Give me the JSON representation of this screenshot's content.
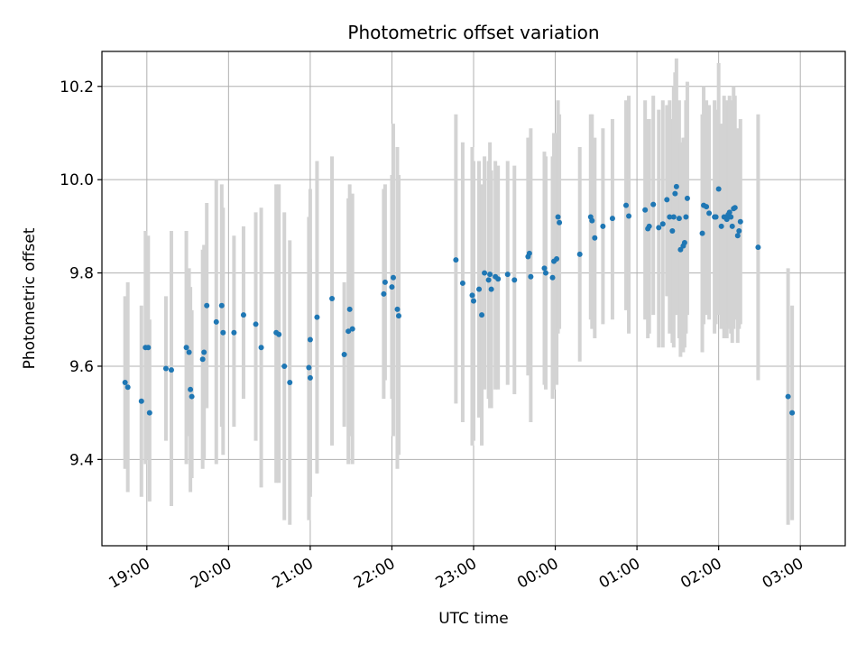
{
  "chart_data": {
    "type": "scatter",
    "title": "Photometric offset variation",
    "xlabel": "UTC time",
    "ylabel": "Photometric offset",
    "x_tick_labels": [
      "19:00",
      "20:00",
      "21:00",
      "22:00",
      "23:00",
      "00:00",
      "01:00",
      "02:00",
      "03:00"
    ],
    "y_tick_labels": [
      "9.4",
      "9.6",
      "9.8",
      "10.0",
      "10.2"
    ],
    "y_ticks": [
      9.4,
      9.6,
      9.8,
      10.0,
      10.2
    ],
    "grid": true,
    "legend": "none",
    "marker_color": "#1f77b4",
    "errorbar_color": "#d3d3d3",
    "points": [
      [
        "18:44",
        9.565,
        9.38,
        9.75
      ],
      [
        "18:46",
        9.555,
        9.33,
        9.78
      ],
      [
        "18:56",
        9.525,
        9.32,
        9.73
      ],
      [
        "18:59",
        9.64,
        9.39,
        9.89
      ],
      [
        "19:01",
        9.64,
        9.4,
        9.88
      ],
      [
        "19:02",
        9.5,
        9.31,
        9.7
      ],
      [
        "19:14",
        9.595,
        9.44,
        9.75
      ],
      [
        "19:18",
        9.592,
        9.3,
        9.89
      ],
      [
        "19:29",
        9.64,
        9.39,
        9.89
      ],
      [
        "19:31",
        9.63,
        9.45,
        9.81
      ],
      [
        "19:32",
        9.55,
        9.33,
        9.77
      ],
      [
        "19:33",
        9.535,
        9.36,
        9.72
      ],
      [
        "19:41",
        9.615,
        9.38,
        9.85
      ],
      [
        "19:42",
        9.63,
        9.4,
        9.86
      ],
      [
        "19:44",
        9.73,
        9.51,
        9.95
      ],
      [
        "19:51",
        9.695,
        9.39,
        10.0
      ],
      [
        "19:55",
        9.73,
        9.47,
        9.99
      ],
      [
        "19:56",
        9.672,
        9.41,
        9.94
      ],
      [
        "20:04",
        9.672,
        9.47,
        9.88
      ],
      [
        "20:11",
        9.71,
        9.53,
        9.9
      ],
      [
        "20:20",
        9.69,
        9.44,
        9.93
      ],
      [
        "20:24",
        9.64,
        9.34,
        9.94
      ],
      [
        "20:35",
        9.672,
        9.35,
        9.99
      ],
      [
        "20:37",
        9.668,
        9.35,
        9.99
      ],
      [
        "20:41",
        9.6,
        9.27,
        9.93
      ],
      [
        "20:45",
        9.565,
        9.26,
        9.87
      ],
      [
        "20:59",
        9.597,
        9.27,
        9.92
      ],
      [
        "21:00",
        9.575,
        9.32,
        9.83
      ],
      [
        "21:00",
        9.657,
        9.33,
        9.98
      ],
      [
        "21:05",
        9.705,
        9.37,
        10.04
      ],
      [
        "21:16",
        9.745,
        9.43,
        10.05
      ],
      [
        "21:25",
        9.625,
        9.47,
        9.78
      ],
      [
        "21:28",
        9.675,
        9.39,
        9.96
      ],
      [
        "21:29",
        9.722,
        9.45,
        9.99
      ],
      [
        "21:31",
        9.68,
        9.39,
        9.97
      ],
      [
        "21:54",
        9.755,
        9.53,
        9.98
      ],
      [
        "21:55",
        9.78,
        9.57,
        9.99
      ],
      [
        "22:00",
        9.77,
        9.53,
        10.01
      ],
      [
        "22:01",
        9.79,
        9.45,
        10.12
      ],
      [
        "22:04",
        9.722,
        9.38,
        10.07
      ],
      [
        "22:05",
        9.708,
        9.41,
        10.01
      ],
      [
        "22:47",
        9.828,
        9.52,
        10.14
      ],
      [
        "22:52",
        9.778,
        9.48,
        10.08
      ],
      [
        "22:59",
        9.752,
        9.43,
        10.07
      ],
      [
        "23:00",
        9.74,
        9.44,
        10.04
      ],
      [
        "23:04",
        9.765,
        9.49,
        10.04
      ],
      [
        "23:06",
        9.71,
        9.43,
        9.99
      ],
      [
        "23:08",
        9.8,
        9.55,
        10.05
      ],
      [
        "23:11",
        9.785,
        9.53,
        10.04
      ],
      [
        "23:12",
        9.797,
        9.51,
        10.08
      ],
      [
        "23:13",
        9.765,
        9.51,
        10.02
      ],
      [
        "23:16",
        9.792,
        9.55,
        10.04
      ],
      [
        "23:18",
        9.787,
        9.55,
        10.03
      ],
      [
        "23:25",
        9.797,
        9.56,
        10.04
      ],
      [
        "23:30",
        9.785,
        9.54,
        10.03
      ],
      [
        "23:40",
        9.835,
        9.58,
        10.09
      ],
      [
        "23:41",
        9.842,
        9.59,
        10.09
      ],
      [
        "23:42",
        9.792,
        9.48,
        10.11
      ],
      [
        "23:52",
        9.81,
        9.56,
        10.06
      ],
      [
        "23:53",
        9.8,
        9.55,
        10.05
      ],
      [
        "23:58",
        9.79,
        9.53,
        10.05
      ],
      [
        "23:59",
        9.825,
        9.55,
        10.1
      ],
      [
        "00:01",
        9.83,
        9.56,
        10.1
      ],
      [
        "00:02",
        9.92,
        9.67,
        10.17
      ],
      [
        "00:03",
        9.908,
        9.68,
        10.14
      ],
      [
        "00:18",
        9.84,
        9.61,
        10.07
      ],
      [
        "00:26",
        9.92,
        9.7,
        10.14
      ],
      [
        "00:27",
        9.912,
        9.68,
        10.14
      ],
      [
        "00:29",
        9.875,
        9.66,
        10.09
      ],
      [
        "00:35",
        9.9,
        9.69,
        10.11
      ],
      [
        "00:42",
        9.917,
        9.7,
        10.13
      ],
      [
        "00:52",
        9.945,
        9.72,
        10.17
      ],
      [
        "00:54",
        9.922,
        9.67,
        10.18
      ],
      [
        "01:06",
        9.935,
        9.7,
        10.17
      ],
      [
        "01:08",
        9.895,
        9.66,
        10.13
      ],
      [
        "01:09",
        9.9,
        9.67,
        10.13
      ],
      [
        "01:12",
        9.947,
        9.71,
        10.18
      ],
      [
        "01:16",
        9.897,
        9.64,
        10.15
      ],
      [
        "01:19",
        9.905,
        9.64,
        10.17
      ],
      [
        "01:22",
        9.957,
        9.75,
        10.16
      ],
      [
        "01:24",
        9.92,
        9.67,
        10.17
      ],
      [
        "01:26",
        9.89,
        9.65,
        10.13
      ],
      [
        "01:27",
        9.92,
        9.64,
        10.2
      ],
      [
        "01:28",
        9.97,
        9.71,
        10.23
      ],
      [
        "01:29",
        9.985,
        9.71,
        10.26
      ],
      [
        "01:31",
        9.917,
        9.66,
        10.17
      ],
      [
        "01:32",
        9.85,
        9.62,
        10.08
      ],
      [
        "01:34",
        9.858,
        9.63,
        10.09
      ],
      [
        "01:35",
        9.865,
        9.64,
        10.09
      ],
      [
        "01:36",
        9.92,
        9.67,
        10.17
      ],
      [
        "01:37",
        9.96,
        9.71,
        10.21
      ],
      [
        "01:48",
        9.885,
        9.63,
        10.14
      ],
      [
        "01:49",
        9.945,
        9.69,
        10.2
      ],
      [
        "01:51",
        9.942,
        9.71,
        10.17
      ],
      [
        "01:53",
        9.928,
        9.7,
        10.16
      ],
      [
        "01:57",
        9.92,
        9.67,
        10.17
      ],
      [
        "01:58",
        9.92,
        9.69,
        10.15
      ],
      [
        "02:00",
        9.98,
        9.71,
        10.25
      ],
      [
        "02:02",
        9.9,
        9.68,
        10.12
      ],
      [
        "02:04",
        9.92,
        9.66,
        10.18
      ],
      [
        "02:06",
        9.915,
        9.66,
        10.17
      ],
      [
        "02:07",
        9.925,
        9.69,
        10.16
      ],
      [
        "02:08",
        9.93,
        9.68,
        10.18
      ],
      [
        "02:09",
        9.92,
        9.67,
        10.17
      ],
      [
        "02:10",
        9.9,
        9.65,
        10.15
      ],
      [
        "02:11",
        9.938,
        9.68,
        10.2
      ],
      [
        "02:12",
        9.94,
        9.7,
        10.18
      ],
      [
        "02:14",
        9.88,
        9.65,
        10.11
      ],
      [
        "02:15",
        9.89,
        9.68,
        10.1
      ],
      [
        "02:16",
        9.91,
        9.69,
        10.13
      ],
      [
        "02:29",
        9.855,
        9.57,
        10.14
      ],
      [
        "02:51",
        9.535,
        9.26,
        9.81
      ],
      [
        "02:54",
        9.5,
        9.27,
        9.73
      ]
    ]
  }
}
